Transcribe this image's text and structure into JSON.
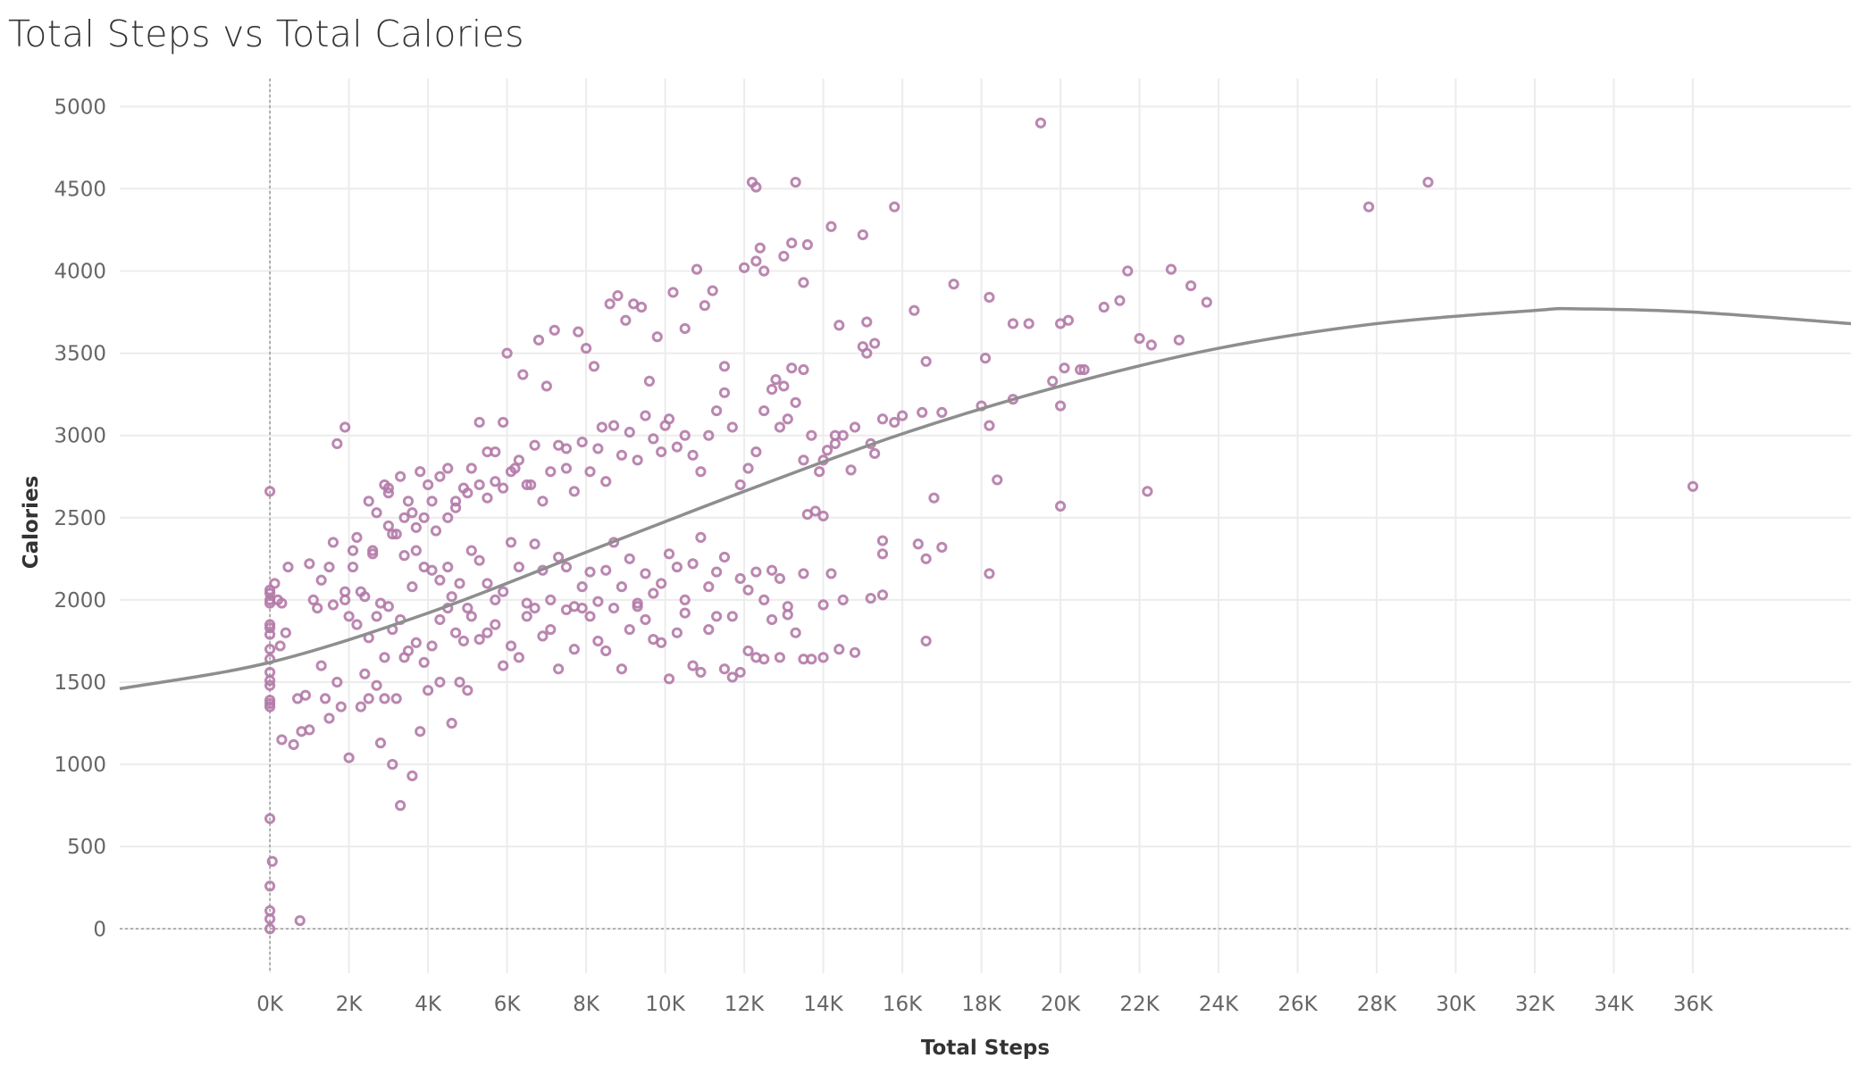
{
  "chart_data": {
    "type": "scatter",
    "title": "Total Steps vs Total Calories",
    "xlabel": "Total Steps",
    "ylabel": "Calories",
    "xlim": [
      -3800,
      40000
    ],
    "ylim": [
      -270,
      5170
    ],
    "x_ticks": [
      0,
      2000,
      4000,
      6000,
      8000,
      10000,
      12000,
      14000,
      16000,
      18000,
      20000,
      22000,
      24000,
      26000,
      28000,
      30000,
      32000,
      34000,
      36000
    ],
    "x_tick_labels": [
      "0K",
      "2K",
      "4K",
      "6K",
      "8K",
      "10K",
      "12K",
      "14K",
      "16K",
      "18K",
      "20K",
      "22K",
      "24K",
      "26K",
      "28K",
      "30K",
      "32K",
      "34K",
      "36K"
    ],
    "y_ticks": [
      0,
      500,
      1000,
      1500,
      2000,
      2500,
      3000,
      3500,
      4000,
      4500,
      5000
    ],
    "y_tick_labels": [
      "0",
      "500",
      "1000",
      "1500",
      "2000",
      "2500",
      "3000",
      "3500",
      "4000",
      "4500",
      "5000"
    ],
    "grid": true,
    "colors": {
      "points": "#b47aa8",
      "trend": "#8e8e8e",
      "grid": "#ececec",
      "zero_line": "#9a9a9a"
    },
    "trend_line": {
      "type": "polynomial",
      "x": [
        -3800,
        0,
        4000,
        8000,
        12000,
        16000,
        20000,
        24000,
        28000,
        32000,
        33000,
        36000,
        40000
      ],
      "y": [
        1460,
        1620,
        1920,
        2290,
        2660,
        3010,
        3300,
        3530,
        3680,
        3760,
        3770,
        3750,
        3680
      ]
    },
    "points": [
      [
        0,
        2660
      ],
      [
        0,
        2060
      ],
      [
        0,
        2040
      ],
      [
        0,
        2000
      ],
      [
        0,
        1980
      ],
      [
        0,
        1850
      ],
      [
        0,
        1830
      ],
      [
        0,
        1790
      ],
      [
        0,
        1700
      ],
      [
        0,
        1640
      ],
      [
        0,
        1560
      ],
      [
        0,
        1510
      ],
      [
        0,
        1480
      ],
      [
        0,
        1390
      ],
      [
        0,
        1370
      ],
      [
        0,
        1350
      ],
      [
        0,
        670
      ],
      [
        60,
        410
      ],
      [
        0,
        260
      ],
      [
        0,
        110
      ],
      [
        0,
        60
      ],
      [
        0,
        0
      ],
      [
        760,
        50
      ],
      [
        120,
        2100
      ],
      [
        200,
        2000
      ],
      [
        300,
        1980
      ],
      [
        400,
        1800
      ],
      [
        260,
        1720
      ],
      [
        300,
        1150
      ],
      [
        460,
        2200
      ],
      [
        600,
        1120
      ],
      [
        700,
        1400
      ],
      [
        800,
        1200
      ],
      [
        900,
        1420
      ],
      [
        1000,
        1210
      ],
      [
        1100,
        2000
      ],
      [
        1200,
        1950
      ],
      [
        1300,
        1600
      ],
      [
        1400,
        1400
      ],
      [
        1500,
        1280
      ],
      [
        1600,
        1970
      ],
      [
        1700,
        1500
      ],
      [
        1800,
        1350
      ],
      [
        1900,
        2050
      ],
      [
        2000,
        1040
      ],
      [
        2100,
        2300
      ],
      [
        2200,
        2380
      ],
      [
        2300,
        1350
      ],
      [
        2400,
        1550
      ],
      [
        2500,
        1400
      ],
      [
        2600,
        2300
      ],
      [
        2700,
        1480
      ],
      [
        2800,
        1130
      ],
      [
        2900,
        1400
      ],
      [
        3000,
        1960
      ],
      [
        3100,
        1000
      ],
      [
        3200,
        1400
      ],
      [
        3300,
        750
      ],
      [
        3400,
        1650
      ],
      [
        3600,
        930
      ],
      [
        3800,
        1200
      ],
      [
        4000,
        1450
      ],
      [
        4300,
        1500
      ],
      [
        4600,
        1250
      ],
      [
        4800,
        1500
      ],
      [
        5000,
        1450
      ],
      [
        1700,
        2950
      ],
      [
        1900,
        3050
      ],
      [
        3000,
        2680
      ],
      [
        3000,
        2650
      ],
      [
        3400,
        2500
      ],
      [
        3600,
        2530
      ],
      [
        3800,
        2780
      ],
      [
        4000,
        2700
      ],
      [
        4200,
        2420
      ],
      [
        4500,
        2800
      ],
      [
        4700,
        2560
      ],
      [
        5000,
        2650
      ],
      [
        5300,
        3080
      ],
      [
        5500,
        2900
      ],
      [
        5700,
        2720
      ],
      [
        5900,
        3080
      ],
      [
        6000,
        3500
      ],
      [
        6200,
        2800
      ],
      [
        6400,
        3370
      ],
      [
        6600,
        2700
      ],
      [
        6800,
        3580
      ],
      [
        7000,
        3300
      ],
      [
        7200,
        3640
      ],
      [
        7500,
        2920
      ],
      [
        7800,
        3630
      ],
      [
        8000,
        3530
      ],
      [
        8200,
        3420
      ],
      [
        8400,
        3050
      ],
      [
        8600,
        3800
      ],
      [
        8800,
        3850
      ],
      [
        9000,
        3700
      ],
      [
        9200,
        3800
      ],
      [
        9400,
        3780
      ],
      [
        9600,
        3330
      ],
      [
        9800,
        3600
      ],
      [
        10000,
        3060
      ],
      [
        10200,
        3870
      ],
      [
        10500,
        3650
      ],
      [
        10800,
        4010
      ],
      [
        11000,
        3790
      ],
      [
        11200,
        3880
      ],
      [
        11500,
        3420
      ],
      [
        12000,
        4020
      ],
      [
        12200,
        4540
      ],
      [
        12300,
        4510
      ],
      [
        12400,
        4140
      ],
      [
        12300,
        4060
      ],
      [
        12500,
        4000
      ],
      [
        13000,
        4090
      ],
      [
        13200,
        4170
      ],
      [
        13300,
        4540
      ],
      [
        13500,
        3930
      ],
      [
        13600,
        4160
      ],
      [
        14200,
        4270
      ],
      [
        14400,
        3670
      ],
      [
        15000,
        4220
      ],
      [
        15100,
        3690
      ],
      [
        15800,
        4390
      ],
      [
        16300,
        3760
      ],
      [
        16600,
        3450
      ],
      [
        17300,
        3920
      ],
      [
        18100,
        3470
      ],
      [
        18200,
        3840
      ],
      [
        18800,
        3680
      ],
      [
        19200,
        3680
      ],
      [
        19500,
        4900
      ],
      [
        19800,
        3330
      ],
      [
        20000,
        3680
      ],
      [
        20200,
        3700
      ],
      [
        20500,
        3400
      ],
      [
        21100,
        3780
      ],
      [
        21500,
        3820
      ],
      [
        21700,
        4000
      ],
      [
        22000,
        3590
      ],
      [
        22300,
        3550
      ],
      [
        22800,
        4010
      ],
      [
        23000,
        3580
      ],
      [
        23300,
        3910
      ],
      [
        23700,
        3810
      ],
      [
        27800,
        4390
      ],
      [
        29300,
        4540
      ],
      [
        36000,
        2690
      ],
      [
        12800,
        3340
      ],
      [
        13000,
        3300
      ],
      [
        13200,
        3410
      ],
      [
        13500,
        3400
      ],
      [
        14500,
        3000
      ],
      [
        14800,
        3050
      ],
      [
        15000,
        3540
      ],
      [
        15100,
        3500
      ],
      [
        15300,
        3560
      ],
      [
        15500,
        3100
      ],
      [
        15800,
        3080
      ],
      [
        16000,
        3120
      ],
      [
        16500,
        3140
      ],
      [
        17000,
        3140
      ],
      [
        18000,
        3180
      ],
      [
        18200,
        3060
      ],
      [
        18800,
        3220
      ],
      [
        20000,
        3180
      ],
      [
        20100,
        3410
      ],
      [
        20600,
        3400
      ],
      [
        14000,
        2850
      ],
      [
        14300,
        2950
      ],
      [
        14700,
        2790
      ],
      [
        15200,
        2950
      ],
      [
        15300,
        2890
      ],
      [
        14000,
        2510
      ],
      [
        13800,
        2540
      ],
      [
        13600,
        2520
      ],
      [
        16800,
        2620
      ],
      [
        18400,
        2730
      ],
      [
        20000,
        2570
      ],
      [
        22200,
        2660
      ],
      [
        15500,
        2360
      ],
      [
        15500,
        2280
      ],
      [
        16400,
        2340
      ],
      [
        16600,
        2250
      ],
      [
        17000,
        2320
      ],
      [
        18200,
        2160
      ],
      [
        15200,
        2010
      ],
      [
        15500,
        2030
      ],
      [
        16600,
        1750
      ],
      [
        14200,
        2160
      ],
      [
        14500,
        2000
      ],
      [
        14000,
        1970
      ],
      [
        13500,
        2160
      ],
      [
        14000,
        1650
      ],
      [
        14400,
        1700
      ],
      [
        14800,
        1680
      ],
      [
        1000,
        2220
      ],
      [
        1300,
        2120
      ],
      [
        1500,
        2200
      ],
      [
        1600,
        2350
      ],
      [
        1900,
        2000
      ],
      [
        2100,
        2200
      ],
      [
        2300,
        2050
      ],
      [
        2400,
        2020
      ],
      [
        2600,
        2280
      ],
      [
        2800,
        1980
      ],
      [
        3000,
        2450
      ],
      [
        3200,
        2400
      ],
      [
        3400,
        2270
      ],
      [
        3600,
        2080
      ],
      [
        3700,
        2300
      ],
      [
        3900,
        2200
      ],
      [
        4100,
        2180
      ],
      [
        4300,
        2120
      ],
      [
        4500,
        2200
      ],
      [
        4600,
        2020
      ],
      [
        4800,
        2100
      ],
      [
        5000,
        1950
      ],
      [
        5100,
        2300
      ],
      [
        5300,
        2240
      ],
      [
        5500,
        2100
      ],
      [
        5700,
        2000
      ],
      [
        5900,
        2050
      ],
      [
        6100,
        2350
      ],
      [
        6300,
        2200
      ],
      [
        6500,
        1980
      ],
      [
        6700,
        2340
      ],
      [
        6900,
        2180
      ],
      [
        7100,
        2000
      ],
      [
        7300,
        2260
      ],
      [
        7500,
        2200
      ],
      [
        7700,
        1960
      ],
      [
        7900,
        2080
      ],
      [
        8100,
        2170
      ],
      [
        8300,
        1990
      ],
      [
        8500,
        2180
      ],
      [
        8700,
        2350
      ],
      [
        8900,
        2080
      ],
      [
        9100,
        2250
      ],
      [
        9300,
        1980
      ],
      [
        9500,
        2160
      ],
      [
        9700,
        2040
      ],
      [
        9900,
        2100
      ],
      [
        10100,
        2280
      ],
      [
        10300,
        2200
      ],
      [
        10500,
        2000
      ],
      [
        10700,
        2220
      ],
      [
        10900,
        2380
      ],
      [
        11100,
        2080
      ],
      [
        11300,
        2170
      ],
      [
        11500,
        2260
      ],
      [
        11700,
        1900
      ],
      [
        11900,
        2130
      ],
      [
        12100,
        2060
      ],
      [
        12300,
        2170
      ],
      [
        12500,
        2000
      ],
      [
        12700,
        2180
      ],
      [
        12900,
        2130
      ],
      [
        13100,
        1960
      ],
      [
        2000,
        1900
      ],
      [
        2200,
        1850
      ],
      [
        2500,
        1770
      ],
      [
        2700,
        1900
      ],
      [
        2900,
        1650
      ],
      [
        3100,
        1820
      ],
      [
        3300,
        1880
      ],
      [
        3500,
        1690
      ],
      [
        3700,
        1740
      ],
      [
        3900,
        1620
      ],
      [
        4100,
        1720
      ],
      [
        4300,
        1880
      ],
      [
        4500,
        1950
      ],
      [
        4700,
        1800
      ],
      [
        4900,
        1750
      ],
      [
        5100,
        1900
      ],
      [
        5300,
        1760
      ],
      [
        5500,
        1800
      ],
      [
        5700,
        1850
      ],
      [
        5900,
        1600
      ],
      [
        6100,
        1720
      ],
      [
        6300,
        1650
      ],
      [
        6500,
        1900
      ],
      [
        6700,
        1950
      ],
      [
        6900,
        1780
      ],
      [
        7100,
        1820
      ],
      [
        7300,
        1580
      ],
      [
        7500,
        1940
      ],
      [
        7700,
        1700
      ],
      [
        7900,
        1950
      ],
      [
        8100,
        1900
      ],
      [
        8300,
        1750
      ],
      [
        8500,
        1690
      ],
      [
        8700,
        1950
      ],
      [
        8900,
        1580
      ],
      [
        9100,
        1820
      ],
      [
        9300,
        1960
      ],
      [
        9500,
        1880
      ],
      [
        9700,
        1760
      ],
      [
        9900,
        1740
      ],
      [
        10100,
        1520
      ],
      [
        10300,
        1800
      ],
      [
        10500,
        1920
      ],
      [
        10700,
        1600
      ],
      [
        10900,
        1560
      ],
      [
        11100,
        1820
      ],
      [
        11300,
        1900
      ],
      [
        11500,
        1580
      ],
      [
        11700,
        1530
      ],
      [
        11900,
        1560
      ],
      [
        12100,
        1690
      ],
      [
        12300,
        1650
      ],
      [
        12500,
        1640
      ],
      [
        12700,
        1880
      ],
      [
        12900,
        1650
      ],
      [
        13100,
        1910
      ],
      [
        13300,
        1800
      ],
      [
        13500,
        1640
      ],
      [
        13700,
        1640
      ],
      [
        2500,
        2600
      ],
      [
        2700,
        2530
      ],
      [
        2900,
        2700
      ],
      [
        3100,
        2400
      ],
      [
        3300,
        2750
      ],
      [
        3500,
        2600
      ],
      [
        3700,
        2440
      ],
      [
        3900,
        2500
      ],
      [
        4100,
        2600
      ],
      [
        4300,
        2750
      ],
      [
        4500,
        2500
      ],
      [
        4700,
        2600
      ],
      [
        4900,
        2680
      ],
      [
        5100,
        2800
      ],
      [
        5300,
        2700
      ],
      [
        5500,
        2620
      ],
      [
        5700,
        2900
      ],
      [
        5900,
        2680
      ],
      [
        6100,
        2780
      ],
      [
        6300,
        2850
      ],
      [
        6500,
        2700
      ],
      [
        6700,
        2940
      ],
      [
        6900,
        2600
      ],
      [
        7100,
        2780
      ],
      [
        7300,
        2940
      ],
      [
        7500,
        2800
      ],
      [
        7700,
        2660
      ],
      [
        7900,
        2960
      ],
      [
        8100,
        2780
      ],
      [
        8300,
        2920
      ],
      [
        8500,
        2720
      ],
      [
        8700,
        3060
      ],
      [
        8900,
        2880
      ],
      [
        9100,
        3020
      ],
      [
        9300,
        2850
      ],
      [
        9500,
        3120
      ],
      [
        9700,
        2980
      ],
      [
        9900,
        2900
      ],
      [
        10100,
        3100
      ],
      [
        10300,
        2930
      ],
      [
        10500,
        3000
      ],
      [
        10700,
        2880
      ],
      [
        10900,
        2780
      ],
      [
        11100,
        3000
      ],
      [
        11300,
        3150
      ],
      [
        11500,
        3260
      ],
      [
        11700,
        3050
      ],
      [
        11900,
        2700
      ],
      [
        12100,
        2800
      ],
      [
        12300,
        2900
      ],
      [
        12500,
        3150
      ],
      [
        12700,
        3280
      ],
      [
        12900,
        3050
      ],
      [
        13100,
        3100
      ],
      [
        13300,
        3200
      ],
      [
        13500,
        2850
      ],
      [
        13700,
        3000
      ],
      [
        13900,
        2780
      ],
      [
        14100,
        2910
      ],
      [
        14300,
        3000
      ]
    ]
  }
}
